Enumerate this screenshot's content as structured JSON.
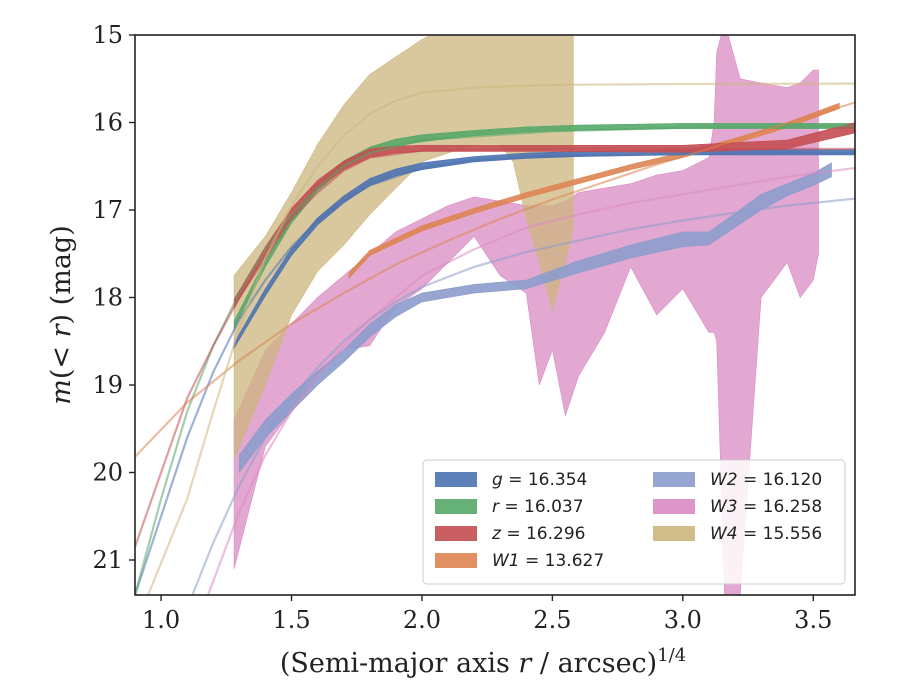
{
  "chart_data": {
    "type": "line",
    "title": "",
    "xlabel_main": "(Semi-major axis ",
    "xlabel_var": "r",
    "xlabel_unit": " / arcsec)",
    "xlabel_sup": "1/4",
    "ylabel_main": "m(< ",
    "ylabel_var": "r",
    "ylabel_unit": ") (mag)",
    "xlim": [
      0.9,
      3.66
    ],
    "ylim": [
      21.4,
      15.0
    ],
    "y_inverted": true,
    "xticks": [
      {
        "value": 1.0,
        "label": "1.0"
      },
      {
        "value": 1.5,
        "label": "1.5"
      },
      {
        "value": 2.0,
        "label": "2.0"
      },
      {
        "value": 2.5,
        "label": "2.5"
      },
      {
        "value": 3.0,
        "label": "3.0"
      },
      {
        "value": 3.5,
        "label": "3.5"
      }
    ],
    "yticks": [
      {
        "value": 15,
        "label": "15"
      },
      {
        "value": 16,
        "label": "16"
      },
      {
        "value": 17,
        "label": "17"
      },
      {
        "value": 18,
        "label": "18"
      },
      {
        "value": 19,
        "label": "19"
      },
      {
        "value": 20,
        "label": "20"
      },
      {
        "value": 21,
        "label": "21"
      }
    ],
    "grid": false,
    "legend_position": "lower-right",
    "series": [
      {
        "name": "g",
        "legend_value": "16.354",
        "color": "#4c72b0",
        "band": [
          [
            1.28,
            18.58,
            18.52
          ],
          [
            1.4,
            17.98,
            17.9
          ],
          [
            1.5,
            17.52,
            17.44
          ],
          [
            1.6,
            17.17,
            17.09
          ],
          [
            1.7,
            16.92,
            16.84
          ],
          [
            1.8,
            16.72,
            16.64
          ],
          [
            1.9,
            16.61,
            16.53
          ],
          [
            2.0,
            16.54,
            16.46
          ],
          [
            2.2,
            16.45,
            16.39
          ],
          [
            2.4,
            16.41,
            16.35
          ],
          [
            2.6,
            16.39,
            16.33
          ],
          [
            2.8,
            16.38,
            16.32
          ],
          [
            3.0,
            16.37,
            16.31
          ],
          [
            3.2,
            16.37,
            16.31
          ],
          [
            3.66,
            16.37,
            16.31
          ]
        ],
        "fit": [
          [
            0.9,
            21.4
          ],
          [
            1.0,
            20.5
          ],
          [
            1.1,
            19.6
          ],
          [
            1.2,
            18.85
          ],
          [
            1.3,
            18.25
          ],
          [
            1.4,
            17.8
          ],
          [
            1.5,
            17.42
          ],
          [
            1.6,
            17.12
          ],
          [
            1.7,
            16.9
          ],
          [
            1.8,
            16.72
          ],
          [
            2.0,
            16.52
          ],
          [
            2.2,
            16.43
          ],
          [
            2.5,
            16.38
          ],
          [
            3.0,
            16.36
          ],
          [
            3.66,
            16.35
          ]
        ]
      },
      {
        "name": "r",
        "legend_value": "16.037",
        "color": "#55a868",
        "band": [
          [
            1.28,
            18.35,
            18.27
          ],
          [
            1.4,
            17.65,
            17.57
          ],
          [
            1.5,
            17.15,
            17.07
          ],
          [
            1.6,
            16.78,
            16.7
          ],
          [
            1.7,
            16.52,
            16.44
          ],
          [
            1.8,
            16.36,
            16.28
          ],
          [
            1.9,
            16.27,
            16.19
          ],
          [
            2.0,
            16.22,
            16.14
          ],
          [
            2.2,
            16.15,
            16.09
          ],
          [
            2.4,
            16.11,
            16.05
          ],
          [
            2.6,
            16.09,
            16.03
          ],
          [
            3.0,
            16.07,
            16.01
          ],
          [
            3.5,
            16.07,
            16.01
          ],
          [
            3.66,
            16.07,
            16.01
          ]
        ],
        "fit": [
          [
            0.9,
            21.4
          ],
          [
            1.0,
            20.3
          ],
          [
            1.1,
            19.3
          ],
          [
            1.2,
            18.55
          ],
          [
            1.3,
            17.95
          ],
          [
            1.4,
            17.45
          ],
          [
            1.5,
            17.05
          ],
          [
            1.6,
            16.75
          ],
          [
            1.7,
            16.5
          ],
          [
            1.8,
            16.35
          ],
          [
            2.0,
            16.2
          ],
          [
            2.5,
            16.1
          ],
          [
            3.0,
            16.06
          ],
          [
            3.66,
            16.04
          ]
        ]
      },
      {
        "name": "z",
        "legend_value": "16.296",
        "color": "#c44e52",
        "band": [
          [
            1.28,
            18.12,
            18.02
          ],
          [
            1.4,
            17.52,
            17.42
          ],
          [
            1.5,
            17.08,
            16.98
          ],
          [
            1.6,
            16.76,
            16.66
          ],
          [
            1.7,
            16.54,
            16.44
          ],
          [
            1.8,
            16.4,
            16.3
          ],
          [
            1.9,
            16.35,
            16.27
          ],
          [
            2.0,
            16.33,
            16.26
          ],
          [
            2.5,
            16.33,
            16.26
          ],
          [
            3.0,
            16.34,
            16.26
          ],
          [
            3.4,
            16.3,
            16.2
          ],
          [
            3.66,
            16.12,
            16.0
          ]
        ],
        "fit": [
          [
            0.9,
            20.85
          ],
          [
            1.0,
            20.0
          ],
          [
            1.1,
            19.15
          ],
          [
            1.2,
            18.55
          ],
          [
            1.3,
            18.0
          ],
          [
            1.4,
            17.55
          ],
          [
            1.5,
            17.1
          ],
          [
            1.6,
            16.8
          ],
          [
            1.7,
            16.55
          ],
          [
            1.8,
            16.4
          ],
          [
            2.0,
            16.32
          ],
          [
            2.5,
            16.3
          ],
          [
            3.0,
            16.3
          ],
          [
            3.66,
            16.3
          ]
        ]
      },
      {
        "name": "W1",
        "legend_value": "13.627",
        "color": "#dd8452",
        "band": [
          [
            1.72,
            17.78,
            17.72
          ],
          [
            1.8,
            17.52,
            17.46
          ],
          [
            1.9,
            17.38,
            17.32
          ],
          [
            2.0,
            17.24,
            17.18
          ],
          [
            2.2,
            17.04,
            16.98
          ],
          [
            2.4,
            16.86,
            16.8
          ],
          [
            2.6,
            16.7,
            16.64
          ],
          [
            2.8,
            16.54,
            16.48
          ],
          [
            3.0,
            16.4,
            16.34
          ],
          [
            3.2,
            16.24,
            16.18
          ],
          [
            3.4,
            16.06,
            16.0
          ],
          [
            3.6,
            15.84,
            15.78
          ]
        ],
        "fit": [
          [
            0.9,
            19.82
          ],
          [
            1.1,
            19.2
          ],
          [
            1.3,
            18.72
          ],
          [
            1.5,
            18.3
          ],
          [
            1.7,
            17.95
          ],
          [
            1.9,
            17.62
          ],
          [
            2.1,
            17.35
          ],
          [
            2.3,
            17.1
          ],
          [
            2.5,
            16.88
          ],
          [
            2.7,
            16.68
          ],
          [
            2.9,
            16.48
          ],
          [
            3.1,
            16.3
          ],
          [
            3.3,
            16.1
          ],
          [
            3.5,
            15.92
          ],
          [
            3.66,
            15.77
          ]
        ]
      },
      {
        "name": "W2",
        "legend_value": "16.120",
        "color": "#8c9ccb",
        "band": [
          [
            1.3,
            20.0,
            19.8
          ],
          [
            1.4,
            19.6,
            19.4
          ],
          [
            1.5,
            19.3,
            19.1
          ],
          [
            1.6,
            19.0,
            18.84
          ],
          [
            1.7,
            18.74,
            18.6
          ],
          [
            1.8,
            18.45,
            18.3
          ],
          [
            1.9,
            18.22,
            18.08
          ],
          [
            2.0,
            18.05,
            17.95
          ],
          [
            2.2,
            17.95,
            17.85
          ],
          [
            2.4,
            17.9,
            17.8
          ],
          [
            2.6,
            17.72,
            17.58
          ],
          [
            2.8,
            17.55,
            17.4
          ],
          [
            3.0,
            17.42,
            17.25
          ],
          [
            3.1,
            17.4,
            17.25
          ],
          [
            3.2,
            17.2,
            17.04
          ],
          [
            3.3,
            17.0,
            16.82
          ],
          [
            3.4,
            16.84,
            16.7
          ],
          [
            3.5,
            16.72,
            16.58
          ],
          [
            3.57,
            16.62,
            16.46
          ]
        ],
        "fit": [
          [
            1.12,
            21.4
          ],
          [
            1.2,
            20.8
          ],
          [
            1.3,
            20.15
          ],
          [
            1.4,
            19.6
          ],
          [
            1.5,
            19.15
          ],
          [
            1.6,
            18.8
          ],
          [
            1.7,
            18.5
          ],
          [
            1.8,
            18.25
          ],
          [
            1.9,
            18.05
          ],
          [
            2.0,
            17.88
          ],
          [
            2.2,
            17.65
          ],
          [
            2.4,
            17.48
          ],
          [
            2.6,
            17.35
          ],
          [
            2.8,
            17.22
          ],
          [
            3.0,
            17.12
          ],
          [
            3.2,
            17.03
          ],
          [
            3.4,
            16.95
          ],
          [
            3.66,
            16.87
          ]
        ]
      },
      {
        "name": "W3",
        "legend_value": "16.258",
        "color": "#da8bc3",
        "band": [
          [
            1.28,
            21.1,
            19.4
          ],
          [
            1.4,
            19.7,
            18.6
          ],
          [
            1.5,
            19.3,
            18.3
          ],
          [
            1.6,
            18.9,
            18.0
          ],
          [
            1.7,
            18.6,
            17.75
          ],
          [
            1.8,
            18.55,
            17.5
          ],
          [
            1.9,
            18.1,
            17.25
          ],
          [
            2.0,
            17.9,
            17.1
          ],
          [
            2.1,
            17.6,
            16.95
          ],
          [
            2.2,
            17.3,
            16.85
          ],
          [
            2.3,
            17.75,
            16.9
          ],
          [
            2.4,
            17.95,
            16.95
          ],
          [
            2.45,
            19.0,
            16.95
          ],
          [
            2.5,
            18.6,
            16.95
          ],
          [
            2.55,
            19.35,
            16.9
          ],
          [
            2.6,
            18.9,
            16.8
          ],
          [
            2.7,
            18.4,
            16.75
          ],
          [
            2.8,
            17.65,
            16.7
          ],
          [
            2.9,
            18.2,
            16.6
          ],
          [
            3.0,
            17.9,
            16.55
          ],
          [
            3.1,
            18.4,
            16.4
          ],
          [
            3.12,
            18.4,
            16.0
          ],
          [
            3.13,
            18.5,
            15.2
          ],
          [
            3.16,
            21.4,
            14.85
          ],
          [
            3.22,
            21.4,
            15.5
          ],
          [
            3.3,
            18.0,
            15.55
          ],
          [
            3.4,
            17.6,
            15.6
          ],
          [
            3.45,
            18.0,
            15.55
          ],
          [
            3.5,
            17.8,
            15.4
          ],
          [
            3.52,
            17.5,
            15.4
          ]
        ],
        "fit": [
          [
            1.18,
            21.4
          ],
          [
            1.3,
            20.45
          ],
          [
            1.4,
            19.8
          ],
          [
            1.5,
            19.3
          ],
          [
            1.6,
            18.9
          ],
          [
            1.7,
            18.55
          ],
          [
            1.8,
            18.25
          ],
          [
            1.9,
            18.0
          ],
          [
            2.0,
            17.75
          ],
          [
            2.2,
            17.45
          ],
          [
            2.4,
            17.2
          ],
          [
            2.6,
            17.05
          ],
          [
            2.8,
            16.92
          ],
          [
            3.0,
            16.82
          ],
          [
            3.2,
            16.72
          ],
          [
            3.4,
            16.62
          ],
          [
            3.66,
            16.52
          ]
        ]
      },
      {
        "name": "W4",
        "legend_value": "15.556",
        "color": "#ccb67d",
        "band": [
          [
            1.28,
            19.85,
            17.75
          ],
          [
            1.4,
            19.0,
            17.3
          ],
          [
            1.5,
            18.2,
            16.8
          ],
          [
            1.6,
            17.7,
            16.25
          ],
          [
            1.7,
            17.4,
            15.8
          ],
          [
            1.8,
            17.05,
            15.45
          ],
          [
            1.9,
            16.75,
            15.25
          ],
          [
            2.0,
            16.45,
            15.05
          ],
          [
            2.1,
            16.35,
            14.9
          ],
          [
            2.2,
            16.25,
            14.8
          ],
          [
            2.3,
            16.25,
            14.75
          ],
          [
            2.35,
            16.45,
            14.75
          ],
          [
            2.4,
            17.1,
            14.75
          ],
          [
            2.45,
            17.6,
            14.75
          ],
          [
            2.5,
            18.15,
            14.75
          ],
          [
            2.55,
            17.6,
            14.75
          ],
          [
            2.58,
            17.2,
            14.75
          ]
        ],
        "fit": [
          [
            0.95,
            21.4
          ],
          [
            1.1,
            20.3
          ],
          [
            1.2,
            19.3
          ],
          [
            1.3,
            18.35
          ],
          [
            1.4,
            17.55
          ],
          [
            1.5,
            16.95
          ],
          [
            1.6,
            16.5
          ],
          [
            1.7,
            16.15
          ],
          [
            1.8,
            15.9
          ],
          [
            1.9,
            15.75
          ],
          [
            2.0,
            15.66
          ],
          [
            2.2,
            15.6
          ],
          [
            2.5,
            15.57
          ],
          [
            3.0,
            15.56
          ],
          [
            3.66,
            15.556
          ]
        ]
      }
    ]
  }
}
